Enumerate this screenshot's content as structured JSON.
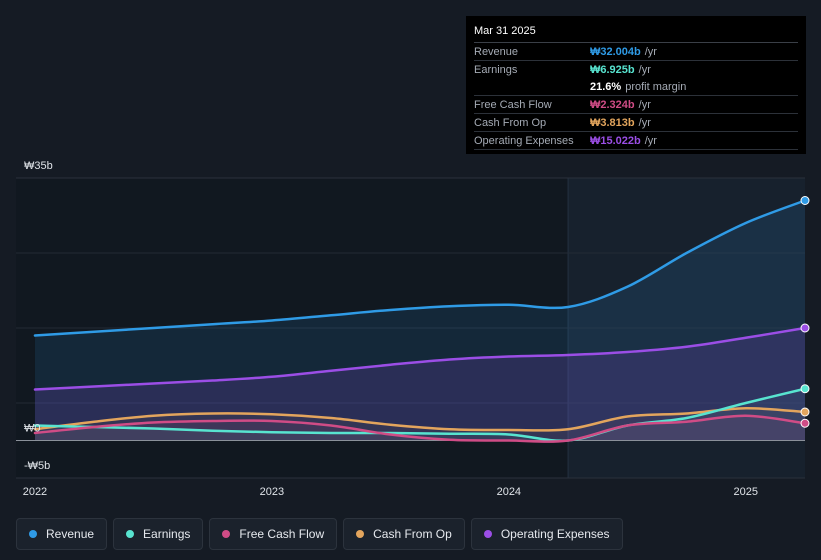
{
  "tooltip": {
    "date": "Mar 31 2025",
    "rows": [
      {
        "label": "Revenue",
        "value": "₩32.004b",
        "unit": "/yr",
        "color": "#2f9be6"
      },
      {
        "label": "Earnings",
        "value": "₩6.925b",
        "unit": "/yr",
        "color": "#58e4d0"
      },
      {
        "label": "",
        "value": "21.6%",
        "unit": "profit margin",
        "color": "#ffffff"
      },
      {
        "label": "Free Cash Flow",
        "value": "₩2.324b",
        "unit": "/yr",
        "color": "#d04c86"
      },
      {
        "label": "Cash From Op",
        "value": "₩3.813b",
        "unit": "/yr",
        "color": "#e3a55d"
      },
      {
        "label": "Operating Expenses",
        "value": "₩15.022b",
        "unit": "/yr",
        "color": "#9b4ee6"
      }
    ]
  },
  "legend": [
    {
      "label": "Revenue",
      "color": "#2f9be6"
    },
    {
      "label": "Earnings",
      "color": "#58e4d0"
    },
    {
      "label": "Free Cash Flow",
      "color": "#d04c86"
    },
    {
      "label": "Cash From Op",
      "color": "#e3a55d"
    },
    {
      "label": "Operating Expenses",
      "color": "#9b4ee6"
    }
  ],
  "chart_data": {
    "type": "area",
    "ylim": [
      -5,
      35
    ],
    "xlim": [
      2021.92,
      2025.25
    ],
    "y_tick_labels": [
      {
        "value": 35,
        "label": "₩35b"
      },
      {
        "value": 0,
        "label": "₩0"
      },
      {
        "value": -5,
        "label": "-₩5b"
      }
    ],
    "x_tick_labels": [
      {
        "value": 2022,
        "label": "2022"
      },
      {
        "value": 2023,
        "label": "2023"
      },
      {
        "value": 2024,
        "label": "2024"
      },
      {
        "value": 2025,
        "label": "2025"
      }
    ],
    "highlight_start": 2024.25,
    "series": [
      {
        "name": "Revenue",
        "color": "#2f9be6",
        "x": [
          2022.0,
          2022.25,
          2022.5,
          2022.75,
          2023.0,
          2023.25,
          2023.5,
          2023.75,
          2024.0,
          2024.25,
          2024.5,
          2024.75,
          2025.0,
          2025.25
        ],
        "y": [
          14.0,
          14.5,
          15.0,
          15.5,
          16.0,
          16.7,
          17.4,
          17.9,
          18.1,
          17.8,
          20.5,
          25.0,
          29.0,
          32.0
        ]
      },
      {
        "name": "Operating Expenses",
        "color": "#9b4ee6",
        "x": [
          2022.0,
          2022.25,
          2022.5,
          2022.75,
          2023.0,
          2023.25,
          2023.5,
          2023.75,
          2024.0,
          2024.25,
          2024.5,
          2024.75,
          2025.0,
          2025.25
        ],
        "y": [
          6.8,
          7.2,
          7.6,
          8.0,
          8.5,
          9.3,
          10.1,
          10.8,
          11.2,
          11.4,
          11.8,
          12.5,
          13.7,
          15.0
        ]
      },
      {
        "name": "Cash From Op",
        "color": "#e3a55d",
        "x": [
          2022.0,
          2022.25,
          2022.5,
          2022.75,
          2023.0,
          2023.25,
          2023.5,
          2023.75,
          2024.0,
          2024.25,
          2024.5,
          2024.75,
          2025.0,
          2025.25
        ],
        "y": [
          1.5,
          2.5,
          3.3,
          3.6,
          3.5,
          3.0,
          2.1,
          1.5,
          1.4,
          1.5,
          3.2,
          3.6,
          4.3,
          3.8
        ]
      },
      {
        "name": "Earnings",
        "color": "#58e4d0",
        "x": [
          2022.0,
          2022.25,
          2022.5,
          2022.75,
          2023.0,
          2023.25,
          2023.5,
          2023.75,
          2024.0,
          2024.25,
          2024.5,
          2024.75,
          2025.0,
          2025.25
        ],
        "y": [
          2.0,
          1.8,
          1.6,
          1.3,
          1.1,
          1.0,
          1.0,
          0.9,
          0.8,
          0.0,
          2.0,
          3.0,
          5.0,
          6.9
        ]
      },
      {
        "name": "Free Cash Flow",
        "color": "#d04c86",
        "x": [
          2022.0,
          2022.25,
          2022.5,
          2022.75,
          2023.0,
          2023.25,
          2023.5,
          2023.75,
          2024.0,
          2024.25,
          2024.5,
          2024.75,
          2025.0,
          2025.25
        ],
        "y": [
          1.0,
          1.8,
          2.4,
          2.6,
          2.6,
          2.0,
          0.8,
          0.1,
          0.0,
          0.0,
          2.0,
          2.5,
          3.3,
          2.3
        ]
      }
    ]
  }
}
